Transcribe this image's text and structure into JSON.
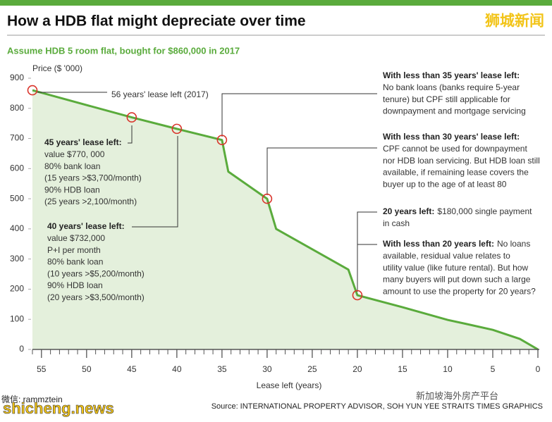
{
  "chart_data": {
    "type": "line",
    "title": "How a HDB flat might depreciate over time",
    "subtitle": "Assume HDB 5 room flat, bought for $860,000 in 2017",
    "y_label": "Price ($ '000)",
    "x_label": "Lease left (years)",
    "source": "Source: INTERNATIONAL PROPERTY ADVISOR, SOH YUN YEE   STRAITS TIMES GRAPHICS",
    "x": [
      56,
      45,
      40,
      35,
      34.3,
      30,
      29,
      21,
      20,
      15,
      10,
      8,
      5,
      2,
      0
    ],
    "values": [
      860,
      770,
      732,
      695,
      590,
      500,
      400,
      265,
      180,
      140,
      98,
      85,
      65,
      35,
      0
    ],
    "color": "#5aab3c",
    "fill": "#e4f0dc",
    "marker_color": "#d9342b",
    "xlim": [
      56,
      0
    ],
    "ylim": [
      0,
      900
    ],
    "xticks": [
      55,
      50,
      45,
      40,
      35,
      30,
      25,
      20,
      15,
      10,
      5,
      0
    ],
    "xminorticks": [
      56,
      54,
      53,
      52,
      51,
      49,
      48,
      47,
      46,
      44,
      43,
      42,
      41,
      39,
      38,
      37,
      36,
      34,
      33,
      32,
      31,
      29,
      28,
      27,
      26,
      24,
      23,
      22,
      21,
      19,
      18,
      17,
      16,
      14,
      13,
      12,
      11,
      9,
      8,
      7,
      6,
      4,
      3,
      2,
      1
    ],
    "yticks": [
      0,
      100,
      200,
      300,
      400,
      500,
      600,
      700,
      800,
      900
    ],
    "annotations": [
      {
        "point": 0,
        "text": "56 years' lease left (2017)"
      },
      {
        "point": 1,
        "heading": "45 years' lease left:",
        "lines": [
          "value $770, 000",
          "80% bank loan",
          "(15 years >$3,700/month)",
          "90% HDB loan",
          "(25 years >2,100/month)"
        ]
      },
      {
        "point": 2,
        "heading": "40 years' lease left:",
        "lines": [
          "value $732,000",
          "P+I per month",
          "80% bank loan",
          "(10 years >$5,200/month)",
          "90% HDB loan",
          "(20 years >$3,500/month)"
        ]
      },
      {
        "point": 3,
        "heading": "With less than 35 years' lease left:",
        "lines": [
          "No bank loans (banks require 5-year",
          "tenure) but CPF still applicable for",
          "downpayment and mortgage servicing"
        ]
      },
      {
        "point": 5,
        "heading": "With less than 30 years' lease left:",
        "lines": [
          "CPF cannot be used for downpayment",
          "nor HDB loan servicing. But HDB loan still",
          "available, if remaining lease covers the",
          "buyer up to the age of at least 80"
        ]
      },
      {
        "point": 8,
        "heading": "20 years left:",
        "inline": "$180,000 single payment",
        "lines": [
          "in cash"
        ]
      },
      {
        "point": 8,
        "heading": "With less than 20 years left:",
        "inline": "No loans",
        "lines": [
          "available, residual value relates to",
          "utility value (like future rental). But how",
          "many buyers will put down such a large",
          "amount to use the property for 20 years?"
        ]
      }
    ]
  },
  "watermarks": {
    "top": "狮城新闻",
    "site": "shicheng.news",
    "wechat": "微信: rammztein",
    "platform": "新加坡海外房产平台"
  }
}
